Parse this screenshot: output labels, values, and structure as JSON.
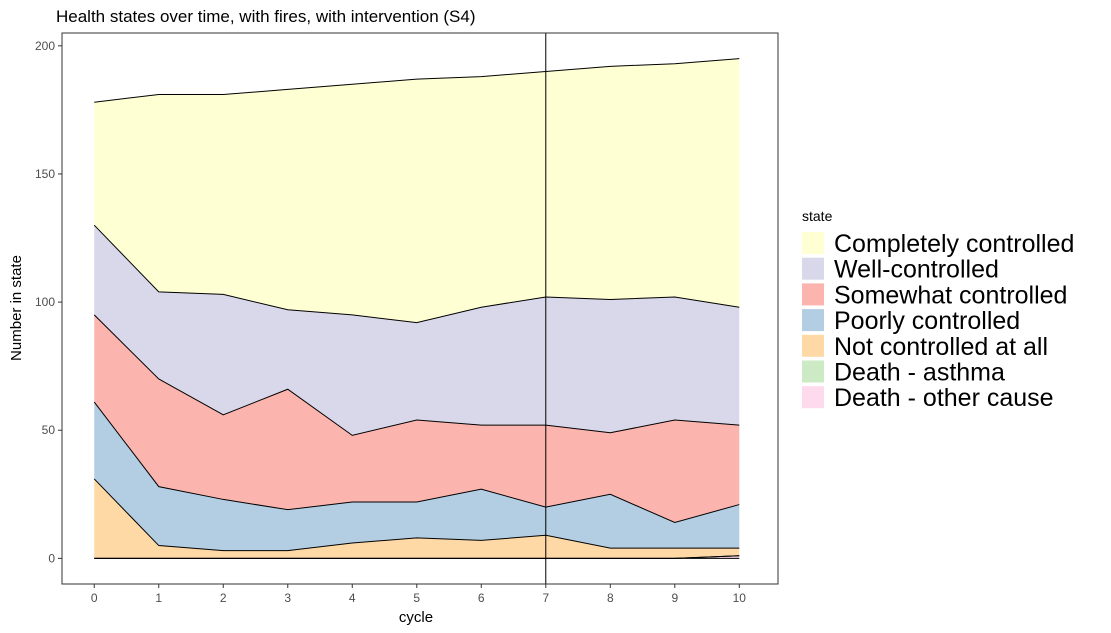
{
  "chart_data": {
    "type": "area",
    "title": "Health states over time, with fires, with intervention (S4)",
    "xlabel": "cycle",
    "ylabel": "Number in state",
    "x": [
      0,
      1,
      2,
      3,
      4,
      5,
      6,
      7,
      8,
      9,
      10
    ],
    "xlim": [
      -0.5,
      10.6
    ],
    "ylim": [
      -10,
      205
    ],
    "x_ticks": [
      0,
      1,
      2,
      3,
      4,
      5,
      6,
      7,
      8,
      9,
      10
    ],
    "y_ticks": [
      0,
      50,
      100,
      150,
      200
    ],
    "stacked": true,
    "vline_x": 7,
    "grid": false,
    "legend_title": "state",
    "legend_position": "right",
    "series": [
      {
        "name": "Completely controlled",
        "color": "#FFFFD4",
        "values": [
          48,
          77,
          78,
          86,
          90,
          95,
          90,
          88,
          91,
          91,
          97
        ]
      },
      {
        "name": "Well-controlled",
        "color": "#D9D8EA",
        "values": [
          35,
          34,
          47,
          31,
          47,
          38,
          46,
          50,
          52,
          48,
          46
        ]
      },
      {
        "name": "Somewhat controlled",
        "color": "#FBB4AE",
        "values": [
          34,
          42,
          33,
          47,
          26,
          32,
          25,
          32,
          24,
          40,
          31
        ]
      },
      {
        "name": "Poorly controlled",
        "color": "#B3CDE3",
        "values": [
          30,
          23,
          20,
          16,
          16,
          14,
          20,
          11,
          21,
          10,
          17
        ]
      },
      {
        "name": "Not controlled at all",
        "color": "#FED9A6",
        "values": [
          31,
          5,
          3,
          3,
          6,
          8,
          7,
          9,
          4,
          4,
          3
        ]
      },
      {
        "name": "Death - asthma",
        "color": "#CCEBC5",
        "values": [
          0,
          0,
          0,
          0,
          0,
          0,
          0,
          0,
          0,
          0,
          0
        ]
      },
      {
        "name": "Death - other cause",
        "color": "#FDDAEC",
        "values": [
          0,
          0,
          0,
          0,
          0,
          0,
          0,
          0,
          0,
          0,
          1
        ]
      }
    ]
  }
}
